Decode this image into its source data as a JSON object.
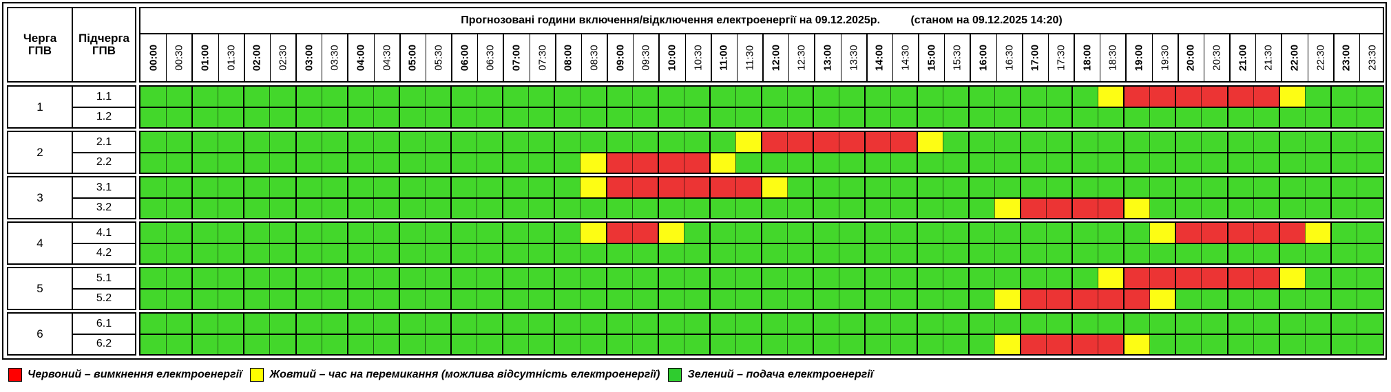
{
  "header": {
    "col_queue": "Черга\nГПВ",
    "col_subqueue": "Підчерга\nГПВ",
    "title": "Прогнозовані години включення/відключення електроенергії на 09.12.2025р.          (станом на 09.12.2025 14:20)"
  },
  "time_slots": [
    "00:00",
    "00:30",
    "01:00",
    "01:30",
    "02:00",
    "02:30",
    "03:00",
    "03:30",
    "04:00",
    "04:30",
    "05:00",
    "05:30",
    "06:00",
    "06:30",
    "07:00",
    "07:30",
    "08:00",
    "08:30",
    "09:00",
    "09:30",
    "10:00",
    "10:30",
    "11:00",
    "11:30",
    "12:00",
    "12:30",
    "13:00",
    "13:30",
    "14:00",
    "14:30",
    "15:00",
    "15:30",
    "16:00",
    "16:30",
    "17:00",
    "17:30",
    "18:00",
    "18:30",
    "19:00",
    "19:30",
    "20:00",
    "20:30",
    "21:00",
    "21:30",
    "22:00",
    "22:30",
    "23:00",
    "23:30"
  ],
  "colors": {
    "green": "#43d72b",
    "red": "#ec3434",
    "yellow": "#fdfd14"
  },
  "groups": [
    {
      "queue": "1",
      "subqueues": [
        {
          "label": "1.1",
          "schedule": "GGGGGGGGGGGGGGGGGGGGGGGGGGGGGGGGGGGGGYRRRRRRYGGG"
        },
        {
          "label": "1.2",
          "schedule": "GGGGGGGGGGGGGGGGGGGGGGGGGGGGGGGGGGGGGGGGGGGGGGGG"
        }
      ]
    },
    {
      "queue": "2",
      "subqueues": [
        {
          "label": "2.1",
          "schedule": "GGGGGGGGGGGGGGGGGGGGGGGYRRRRRRYGGGGGGGGGGGGGGGGG"
        },
        {
          "label": "2.2",
          "schedule": "GGGGGGGGGGGGGGGGGYRRRRYGGGGGGGGGGGGGGGGGGGGGGGGG"
        }
      ]
    },
    {
      "queue": "3",
      "subqueues": [
        {
          "label": "3.1",
          "schedule": "GGGGGGGGGGGGGGGGGYRRRRRRYGGGGGGGGGGGGGGGGGGGGGGG"
        },
        {
          "label": "3.2",
          "schedule": "GGGGGGGGGGGGGGGGGGGGGGGGGGGGGGGGGYRRRRYGGGGGGGGG"
        }
      ]
    },
    {
      "queue": "4",
      "subqueues": [
        {
          "label": "4.1",
          "schedule": "GGGGGGGGGGGGGGGGGYRRYGGGGGGGGGGGGGGGGGGYRRRRRYGGG"
        },
        {
          "label": "4.2",
          "schedule": "GGGGGGGGGGGGGGGGGGGGGGGGGGGGGGGGGGGGGGGGGGGGGGGG"
        }
      ]
    },
    {
      "queue": "5",
      "subqueues": [
        {
          "label": "5.1",
          "schedule": "GGGGGGGGGGGGGGGGGGGGGGGGGGGGGGGGGGGGGYRRRRRRYGGG"
        },
        {
          "label": "5.2",
          "schedule": "GGGGGGGGGGGGGGGGGGGGGGGGGGGGGGGGGYRRRRRYGGGGGGGG"
        }
      ]
    },
    {
      "queue": "6",
      "subqueues": [
        {
          "label": "6.1",
          "schedule": "GGGGGGGGGGGGGGGGGGGGGGGGGGGGGGGGGGGGGGGGGGGGGGGG"
        },
        {
          "label": "6.2",
          "schedule": "GGGGGGGGGGGGGGGGGGGGGGGGGGGGGGGGGYRRRRYGGGGGGGGG"
        }
      ]
    }
  ],
  "legend": {
    "red": "Червоний – вимкнення електроенергії",
    "yellow": "Жовтий – час на перемикання (можлива відсутність електроенергії)",
    "green": "Зелений – подача електроенергії"
  }
}
